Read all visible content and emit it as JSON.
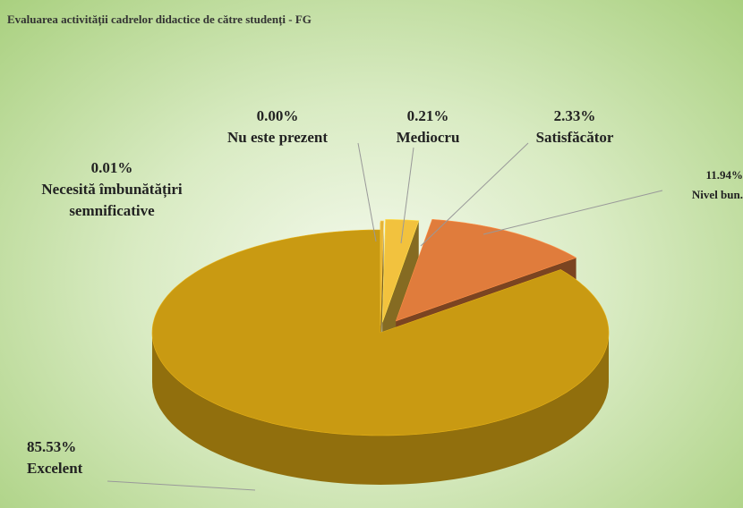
{
  "chart_data": {
    "type": "pie",
    "title": "Evaluarea activității cadrelor didactice de către studenți -  FG",
    "categories": [
      "Nu este prezent",
      "Mediocru",
      "Satisfăcător",
      "Nivel bun.",
      "Excelent",
      "Necesită îmbunătățiri semnificative"
    ],
    "values": [
      0.0,
      0.21,
      2.33,
      11.94,
      85.53,
      0.01
    ],
    "value_labels": [
      "0.00%",
      "0.21%",
      "2.33%",
      "11.94%",
      "85.53%",
      "0.01%"
    ],
    "colors": [
      "#c9b24a",
      "#e3b23a",
      "#f2c23e",
      "#e07c3c",
      "#c99a12",
      "#d2a930"
    ]
  }
}
